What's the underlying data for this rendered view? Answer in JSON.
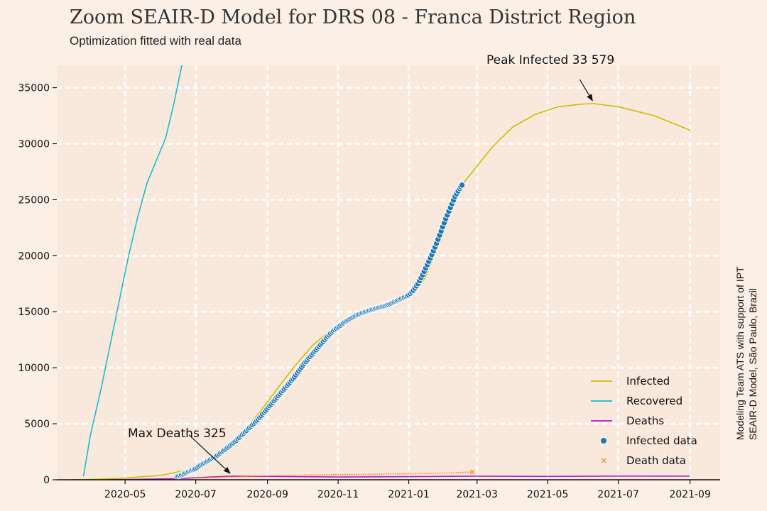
{
  "title": "Zoom SEAIR-D Model for DRS 08 - Franca District Region",
  "subtitle": "Optimization fitted with real data",
  "credit_line1": "Modeling Team ATS with support of IPT",
  "credit_line2": "SEAIR-D Model, São Paulo, Brazil",
  "chart_data": {
    "type": "line",
    "xlabel": "",
    "ylabel": "",
    "x_start": "2020-03-15",
    "xlim": [
      "2020-03-03",
      "2021-09-27"
    ],
    "ylim": [
      0,
      37000
    ],
    "x_ticks": [
      "2020-05",
      "2020-07",
      "2020-09",
      "2020-11",
      "2021-01",
      "2021-03",
      "2021-05",
      "2021-07",
      "2021-09"
    ],
    "y_ticks": [
      0,
      5000,
      10000,
      15000,
      20000,
      25000,
      30000,
      35000
    ],
    "grid": true,
    "legend_position": "bottom-right",
    "colors": {
      "infected": "#c8c000",
      "recovered": "#17becf",
      "deaths": "#b319c8",
      "infected_data": "#1f77b4",
      "death_data": "#ff7f0e"
    },
    "series": [
      {
        "name": "Infected",
        "type": "line",
        "color": "#c8c000",
        "points": [
          [
            "2020-03-15",
            0
          ],
          [
            "2020-04-01",
            30
          ],
          [
            "2020-05-01",
            150
          ],
          [
            "2020-06-01",
            400
          ],
          [
            "2020-06-20",
            800
          ],
          [
            "2020-07-10",
            1500
          ],
          [
            "2020-07-25",
            2500
          ],
          [
            "2020-08-10",
            4200
          ],
          [
            "2020-08-25",
            6000
          ],
          [
            "2020-09-10",
            8200
          ],
          [
            "2020-09-25",
            10200
          ],
          [
            "2020-10-10",
            12000
          ],
          [
            "2020-10-25",
            13300
          ],
          [
            "2020-11-10",
            14300
          ],
          [
            "2020-11-25",
            15000
          ],
          [
            "2020-12-10",
            15500
          ],
          [
            "2020-12-25",
            16000
          ],
          [
            "2021-01-05",
            16600
          ],
          [
            "2021-01-15",
            18000
          ],
          [
            "2021-01-25",
            20500
          ],
          [
            "2021-02-05",
            23500
          ],
          [
            "2021-02-15",
            26200
          ],
          [
            "2021-03-01",
            28000
          ],
          [
            "2021-03-15",
            29800
          ],
          [
            "2021-04-01",
            31500
          ],
          [
            "2021-04-20",
            32600
          ],
          [
            "2021-05-10",
            33300
          ],
          [
            "2021-06-01",
            33550
          ],
          [
            "2021-06-10",
            33579
          ],
          [
            "2021-07-01",
            33300
          ],
          [
            "2021-08-01",
            32500
          ],
          [
            "2021-09-01",
            31200
          ]
        ]
      },
      {
        "name": "Recovered",
        "type": "line",
        "color": "#17becf",
        "points": [
          [
            "2020-03-26",
            300
          ],
          [
            "2020-04-01",
            4000
          ],
          [
            "2020-04-10",
            8000
          ],
          [
            "2020-04-18",
            12000
          ],
          [
            "2020-04-26",
            16000
          ],
          [
            "2020-05-04",
            20000
          ],
          [
            "2020-05-12",
            23500
          ],
          [
            "2020-05-20",
            26500
          ],
          [
            "2020-05-28",
            28500
          ],
          [
            "2020-06-05",
            30500
          ],
          [
            "2020-06-12",
            33500
          ],
          [
            "2020-06-19",
            37000
          ]
        ]
      },
      {
        "name": "Deaths",
        "type": "line",
        "color": "#b319c8",
        "points": [
          [
            "2020-03-15",
            0
          ],
          [
            "2020-05-01",
            20
          ],
          [
            "2020-06-15",
            100
          ],
          [
            "2020-07-15",
            250
          ],
          [
            "2020-08-01",
            325
          ],
          [
            "2020-09-01",
            300
          ],
          [
            "2020-11-01",
            250
          ],
          [
            "2021-01-01",
            280
          ],
          [
            "2021-03-01",
            320
          ],
          [
            "2021-05-01",
            300
          ],
          [
            "2021-07-01",
            330
          ],
          [
            "2021-09-01",
            320
          ]
        ]
      },
      {
        "name": "Infected data",
        "type": "scatter",
        "color": "#1f77b4",
        "points": [
          [
            "2020-06-15",
            300
          ],
          [
            "2020-06-20",
            500
          ],
          [
            "2020-06-25",
            750
          ],
          [
            "2020-07-01",
            1000
          ],
          [
            "2020-07-05",
            1300
          ],
          [
            "2020-07-10",
            1600
          ],
          [
            "2020-07-15",
            1900
          ],
          [
            "2020-07-20",
            2200
          ],
          [
            "2020-07-25",
            2600
          ],
          [
            "2020-07-30",
            3000
          ],
          [
            "2020-08-04",
            3400
          ],
          [
            "2020-08-09",
            3900
          ],
          [
            "2020-08-14",
            4400
          ],
          [
            "2020-08-19",
            4900
          ],
          [
            "2020-08-24",
            5400
          ],
          [
            "2020-08-29",
            6000
          ],
          [
            "2020-09-03",
            6600
          ],
          [
            "2020-09-08",
            7200
          ],
          [
            "2020-09-13",
            7800
          ],
          [
            "2020-09-18",
            8400
          ],
          [
            "2020-09-23",
            9000
          ],
          [
            "2020-09-28",
            9700
          ],
          [
            "2020-10-03",
            10400
          ],
          [
            "2020-10-08",
            11000
          ],
          [
            "2020-10-13",
            11600
          ],
          [
            "2020-10-18",
            12200
          ],
          [
            "2020-10-23",
            12800
          ],
          [
            "2020-10-28",
            13300
          ],
          [
            "2020-11-02",
            13700
          ],
          [
            "2020-11-07",
            14100
          ],
          [
            "2020-11-12",
            14400
          ],
          [
            "2020-11-17",
            14700
          ],
          [
            "2020-11-22",
            14900
          ],
          [
            "2020-11-27",
            15100
          ],
          [
            "2020-12-02",
            15250
          ],
          [
            "2020-12-07",
            15400
          ],
          [
            "2020-12-12",
            15550
          ],
          [
            "2020-12-17",
            15750
          ],
          [
            "2020-12-22",
            16000
          ],
          [
            "2020-12-27",
            16250
          ],
          [
            "2021-01-01",
            16500
          ],
          [
            "2021-01-05",
            16900
          ],
          [
            "2021-01-09",
            17500
          ],
          [
            "2021-01-13",
            18300
          ],
          [
            "2021-01-17",
            19200
          ],
          [
            "2021-01-21",
            20100
          ],
          [
            "2021-01-25",
            21100
          ],
          [
            "2021-01-29",
            22200
          ],
          [
            "2021-02-02",
            23300
          ],
          [
            "2021-02-06",
            24300
          ],
          [
            "2021-02-10",
            25300
          ],
          [
            "2021-02-14",
            26000
          ],
          [
            "2021-02-16",
            26300
          ]
        ]
      },
      {
        "name": "Death data",
        "type": "scatter",
        "color": "#ff7f0e",
        "points": [
          [
            "2020-07-01",
            150
          ],
          [
            "2020-08-01",
            250
          ],
          [
            "2020-09-01",
            350
          ],
          [
            "2020-10-01",
            420
          ],
          [
            "2020-11-01",
            470
          ],
          [
            "2020-12-01",
            500
          ],
          [
            "2021-01-01",
            530
          ],
          [
            "2021-02-01",
            590
          ],
          [
            "2021-02-25",
            700
          ]
        ]
      }
    ],
    "annotations": [
      {
        "label": "Peak Infected 33 579",
        "x": "2021-06-10",
        "y": 33579
      },
      {
        "label": "Max Deaths 325",
        "x": "2020-08-01",
        "y": 325
      }
    ]
  }
}
